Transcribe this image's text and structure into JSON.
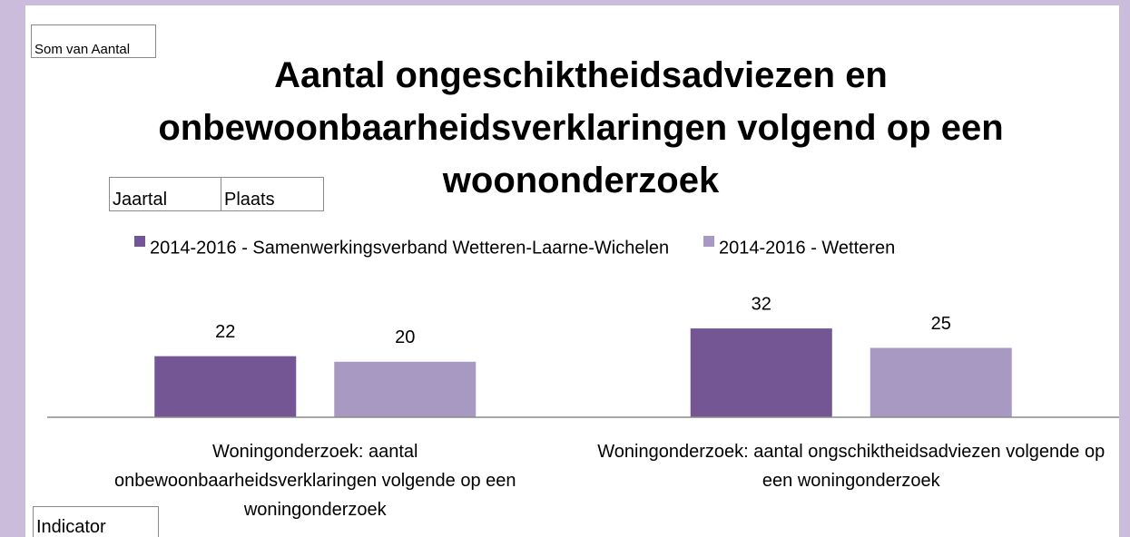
{
  "chart_data": {
    "type": "bar",
    "title": "Aantal ongeschiktheidsadviezen en onbewoonbaarheidsverklaringen volgend op een woononderzoek",
    "categories": [
      "Woningonderzoek: aantal onbewoonbaarheidsverklaringen volgende op een woningonderzoek",
      "Woningonderzoek: aantal ongschiktheidsadviezen volgende op een woningonderzoek"
    ],
    "series": [
      {
        "name": "2014-2016 - Samenwerkingsverband Wetteren-Laarne-Wichelen",
        "color": "#735693",
        "values": [
          22,
          32
        ]
      },
      {
        "name": "2014-2016 - Wetteren",
        "color": "#a899c2",
        "values": [
          20,
          25
        ]
      }
    ],
    "legend": "top",
    "field_buttons": {
      "values": "Som van Aantal",
      "columns": [
        "Jaartal",
        "Plaats"
      ],
      "rows": "Indicator"
    }
  }
}
